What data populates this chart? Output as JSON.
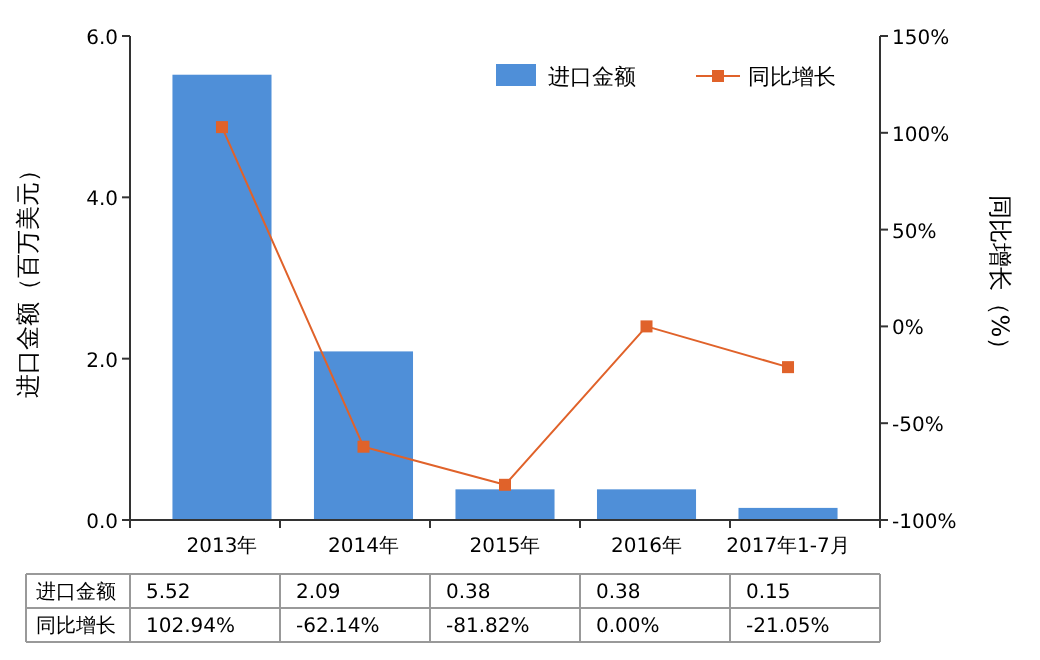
{
  "chart_data": {
    "type": "bar",
    "ylabel": "进口金额（百万美元）",
    "y2label": "同比增长（%）",
    "categories": [
      "2013年",
      "2014年",
      "2015年",
      "2016年",
      "2017年1-7月"
    ],
    "series": [
      {
        "name": "进口金额",
        "color": "#4f8fd8",
        "values": [
          5.52,
          2.09,
          0.38,
          0.38,
          0.15
        ],
        "value_labels": [
          "5.52",
          "2.09",
          "0.38",
          "0.38",
          "0.15"
        ]
      },
      {
        "name": "同比增长",
        "type": "line",
        "axis": "y2",
        "color": "#e0622a",
        "marker": "square",
        "values": [
          102.94,
          -62.14,
          -81.82,
          0.0,
          -21.05
        ],
        "value_labels": [
          "102.94%",
          "-62.14%",
          "-81.82%",
          "0.00%",
          "-21.05%"
        ]
      }
    ],
    "ylim": [
      0,
      6
    ],
    "yticks": [
      {
        "value": 0,
        "label": "0.0"
      },
      {
        "value": 2,
        "label": "2.0"
      },
      {
        "value": 4,
        "label": "4.0"
      },
      {
        "value": 6,
        "label": "6.0"
      }
    ],
    "y2lim": [
      -100,
      150
    ],
    "y2ticks": [
      {
        "value": -100,
        "label": "-100%"
      },
      {
        "value": -50,
        "label": "-50%"
      },
      {
        "value": 0,
        "label": "0%"
      },
      {
        "value": 50,
        "label": "50%"
      },
      {
        "value": 100,
        "label": "100%"
      },
      {
        "value": 150,
        "label": "150%"
      }
    ],
    "legend": "top right",
    "grid": false
  }
}
